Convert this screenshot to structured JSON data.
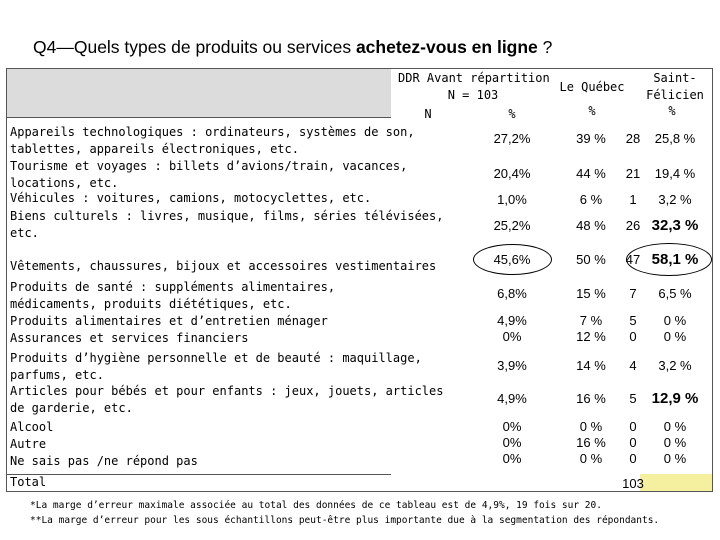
{
  "title": {
    "prefix": "Q4—Quels types de produits ou services ",
    "bold": "achetez-vous en ligne",
    "suffix": " ?"
  },
  "headers": {
    "ddr_line1": "DDR Avant répartition",
    "ddr_line2": "N = 103",
    "n": "N",
    "pct": "%",
    "quebec": "Le Québec",
    "quebec_pct": "%",
    "sf_line1": "Saint-",
    "sf_line2": "Félicien",
    "sf_pct": "%"
  },
  "rows": [
    {
      "label": [
        "Appareils technologiques : ordinateurs, systèmes de son,",
        "tablettes, appareils électroniques, etc."
      ],
      "n": [
        "28"
      ],
      "pct": [
        "27,2%"
      ],
      "qc": [
        "39 %"
      ],
      "sf": [
        "25,8 %"
      ]
    },
    {
      "label": [
        "Tourisme et voyages : billets d’avions/train, vacances,",
        "locations, etc."
      ],
      "n": [
        "21"
      ],
      "pct": [
        "20,4%"
      ],
      "qc": [
        "44 %"
      ],
      "sf": [
        "19,4 %"
      ]
    },
    {
      "label": [
        "Véhicules : voitures, camions, motocyclettes, etc."
      ],
      "n": [
        "1"
      ],
      "pct": [
        "1,0%"
      ],
      "qc": [
        "6 %"
      ],
      "sf": [
        "3,2 %"
      ]
    },
    {
      "label": [
        "Biens culturels : livres, musique, films, séries télévisées,",
        "etc."
      ],
      "n": [
        "26"
      ],
      "pct": [
        "25,2%"
      ],
      "qc": [
        "48 %"
      ],
      "sf": [
        "32,3 %"
      ]
    },
    {
      "label": [
        "Vêtements, chaussures, bijoux et accessoires vestimentaires"
      ],
      "n": [
        "47"
      ],
      "pct": [
        "45,6%"
      ],
      "qc": [
        "50 %"
      ],
      "sf": [
        "58,1 %"
      ]
    },
    {
      "label": [
        "Produits de santé : suppléments alimentaires,",
        "médicaments, produits diététiques, etc."
      ],
      "n": [
        "7"
      ],
      "pct": [
        "6,8%"
      ],
      "qc": [
        "15 %"
      ],
      "sf": [
        "6,5 %"
      ]
    },
    {
      "label": [
        "Produits alimentaires et d’entretien ménager",
        "Assurances et services financiers"
      ],
      "n": [
        "5",
        "0"
      ],
      "pct": [
        "4,9%",
        "0%"
      ],
      "qc": [
        "7 %",
        "12 %"
      ],
      "sf": [
        "0 %",
        "0 %"
      ]
    },
    {
      "label": [
        "Produits d’hygiène personnelle et de beauté : maquillage,",
        "parfums, etc."
      ],
      "n": [
        "4"
      ],
      "pct": [
        "3,9%"
      ],
      "qc": [
        "14 %"
      ],
      "sf": [
        "3,2 %"
      ]
    },
    {
      "label": [
        "Articles pour bébés et pour enfants : jeux, jouets, articles",
        "de garderie, etc."
      ],
      "n": [
        "5"
      ],
      "pct": [
        "4,9%"
      ],
      "qc": [
        "16 %"
      ],
      "sf": [
        "12,9 %"
      ]
    },
    {
      "label": [
        "Alcool",
        "Autre",
        "Ne sais pas /ne répond pas"
      ],
      "n": [
        "0",
        "0",
        "0"
      ],
      "pct": [
        "0%",
        "0%",
        "0%"
      ],
      "qc": [
        "0 %",
        "16 %",
        "0 %"
      ],
      "sf": [
        "0 %",
        "0 %",
        "0 %"
      ]
    },
    {
      "label": [
        "Total"
      ],
      "n": [
        "103"
      ],
      "pct": [],
      "qc": [],
      "sf": []
    }
  ],
  "notes": [
    "*La marge d’erreur maximale associée au total des données de ce tableau est de 4,9%, 19 fois sur 20.",
    "**La marge d’erreur pour les sous échantillons peut-être plus importante due à la segmentation des répondants."
  ]
}
